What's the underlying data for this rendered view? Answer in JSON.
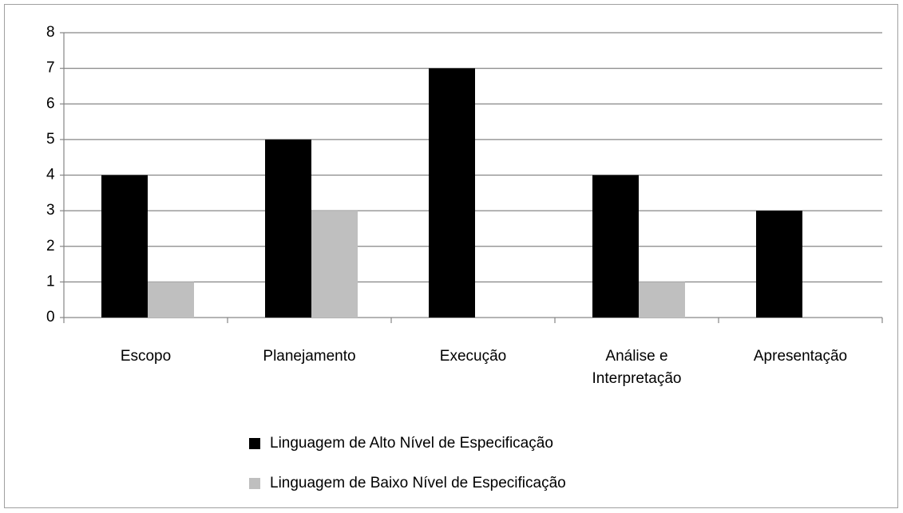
{
  "chart_data": {
    "type": "bar",
    "categories": [
      "Escopo",
      "Planejamento",
      "Execução",
      "Análise e Interpretação",
      "Apresentação"
    ],
    "series": [
      {
        "name": "Linguagem de Alto Nível de Especificação",
        "color": "#000000",
        "values": [
          4,
          5,
          7,
          4,
          3
        ]
      },
      {
        "name": "Linguagem de Baixo Nível de Especificação",
        "color": "#bfbfbf",
        "values": [
          1,
          3,
          0,
          1,
          0
        ]
      }
    ],
    "ylim": [
      0,
      8
    ],
    "yticks": [
      0,
      1,
      2,
      3,
      4,
      5,
      6,
      7,
      8
    ],
    "grid": true,
    "legend": "bottom"
  }
}
